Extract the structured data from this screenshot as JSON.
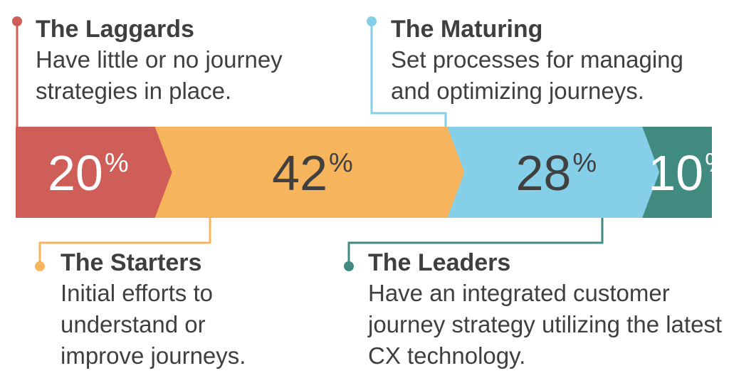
{
  "chart_data": {
    "type": "bar",
    "orientation": "horizontal-stacked",
    "categories": [
      "The Laggards",
      "The Starters",
      "The Maturing",
      "The Leaders"
    ],
    "values": [
      20,
      42,
      28,
      10
    ],
    "value_labels": [
      "20",
      "42",
      "28",
      "10"
    ],
    "unit": "%",
    "colors": [
      "#cf5d58",
      "#f6b55c",
      "#86cfe8",
      "#408a80"
    ],
    "value_text_colors": [
      "#ffffff",
      "#404040",
      "#404040",
      "#ffffff"
    ]
  },
  "labels": {
    "laggards": {
      "title": "The Laggards",
      "description": "Have little or no journey strategies in place.",
      "color": "#cf5d58"
    },
    "starters": {
      "title": "The Starters",
      "description": "Initial efforts to understand or improve journeys.",
      "color": "#f6b55c"
    },
    "maturing": {
      "title": "The Maturing",
      "description": "Set processes for managing and optimizing journeys.",
      "color": "#86cfe8"
    },
    "leaders": {
      "title": "The Leaders",
      "description": "Have an integrated customer journey strategy utilizing the latest CX technology.",
      "color": "#408a80"
    }
  }
}
